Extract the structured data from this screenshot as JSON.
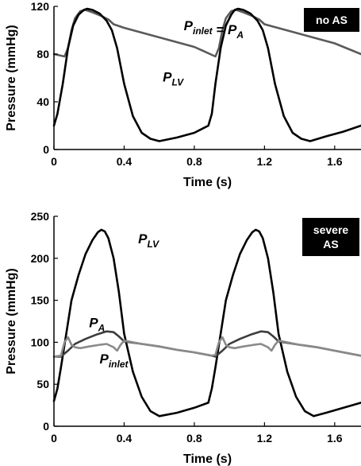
{
  "chart_data": [
    {
      "type": "line",
      "badge": [
        "no AS"
      ],
      "xlabel": "Time (s)",
      "ylabel": "Pressure (mmHg)",
      "xlim": [
        0,
        1.75
      ],
      "ylim": [
        0,
        120
      ],
      "xticks": [
        0,
        0.4,
        0.8,
        1.2,
        1.6
      ],
      "yticks": [
        0,
        40,
        80,
        120
      ],
      "grid": false,
      "annotations": [
        {
          "id": "pinlet-pa",
          "parts": [
            {
              "t": "P",
              "s": "inlet"
            },
            {
              "t": " = "
            },
            {
              "t": "P",
              "s": "A"
            }
          ],
          "x": 0.74,
          "y": 100
        },
        {
          "id": "plv",
          "parts": [
            {
              "t": "P",
              "s": "LV"
            }
          ],
          "x": 0.62,
          "y": 57
        }
      ],
      "series": [
        {
          "id": "pa",
          "color": "#5a5a5a",
          "width": 2.6,
          "x": [
            0,
            0.06,
            0.08,
            0.1,
            0.12,
            0.15,
            0.18,
            0.22,
            0.27,
            0.31,
            0.34,
            0.4,
            0.5,
            0.6,
            0.7,
            0.8,
            0.92,
            0.94,
            0.96,
            0.98,
            1.01,
            1.04,
            1.08,
            1.13,
            1.17,
            1.2,
            1.3,
            1.4,
            1.5,
            1.6,
            1.75
          ],
          "y": [
            80,
            78,
            85,
            100,
            110,
            116,
            117,
            115,
            112,
            109,
            105,
            102,
            98,
            94,
            90,
            86,
            78,
            85,
            100,
            110,
            116,
            117,
            115,
            112,
            109,
            105,
            101,
            97,
            93,
            89,
            80
          ]
        },
        {
          "id": "plv",
          "color": "#000000",
          "width": 2.6,
          "x": [
            0,
            0.02,
            0.05,
            0.08,
            0.11,
            0.14,
            0.17,
            0.19,
            0.22,
            0.26,
            0.3,
            0.33,
            0.36,
            0.4,
            0.45,
            0.5,
            0.55,
            0.6,
            0.7,
            0.8,
            0.88,
            0.9,
            0.92,
            0.95,
            0.98,
            1.01,
            1.03,
            1.05,
            1.08,
            1.12,
            1.16,
            1.19,
            1.22,
            1.26,
            1.31,
            1.36,
            1.41,
            1.46,
            1.55,
            1.65,
            1.75
          ],
          "y": [
            20,
            30,
            55,
            85,
            104,
            113,
            117,
            118,
            117,
            114,
            108,
            100,
            85,
            55,
            28,
            14,
            9,
            7,
            10,
            14,
            20,
            30,
            55,
            85,
            104,
            113,
            117,
            118,
            117,
            114,
            108,
            100,
            85,
            55,
            28,
            14,
            9,
            7,
            11,
            15,
            20
          ]
        }
      ]
    },
    {
      "type": "line",
      "badge": [
        "severe",
        "AS"
      ],
      "xlabel": "Time (s)",
      "ylabel": "Pressure (mmHg)",
      "xlim": [
        0,
        1.75
      ],
      "ylim": [
        0,
        250
      ],
      "xticks": [
        0,
        0.4,
        0.8,
        1.2,
        1.6
      ],
      "yticks": [
        0,
        50,
        100,
        150,
        200,
        250
      ],
      "grid": false,
      "annotations": [
        {
          "id": "plv",
          "parts": [
            {
              "t": "P",
              "s": "LV"
            }
          ],
          "x": 0.48,
          "y": 218
        },
        {
          "id": "pa",
          "parts": [
            {
              "t": "P",
              "s": "A"
            }
          ],
          "x": 0.2,
          "y": 118
        },
        {
          "id": "pinlet",
          "parts": [
            {
              "t": "P",
              "s": "inlet"
            }
          ],
          "x": 0.26,
          "y": 75
        }
      ],
      "series": [
        {
          "id": "plv",
          "color": "#000000",
          "width": 2.6,
          "x": [
            0,
            0.02,
            0.04,
            0.07,
            0.1,
            0.14,
            0.18,
            0.22,
            0.25,
            0.27,
            0.29,
            0.31,
            0.34,
            0.37,
            0.4,
            0.45,
            0.5,
            0.55,
            0.6,
            0.7,
            0.8,
            0.88,
            0.9,
            0.92,
            0.95,
            0.98,
            1.02,
            1.06,
            1.1,
            1.13,
            1.15,
            1.17,
            1.19,
            1.22,
            1.25,
            1.28,
            1.33,
            1.38,
            1.43,
            1.48,
            1.55,
            1.65,
            1.75
          ],
          "y": [
            30,
            45,
            70,
            110,
            150,
            180,
            205,
            222,
            231,
            234,
            232,
            224,
            200,
            160,
            110,
            65,
            35,
            18,
            12,
            16,
            22,
            28,
            45,
            70,
            110,
            150,
            180,
            205,
            222,
            231,
            234,
            232,
            224,
            200,
            160,
            110,
            65,
            35,
            18,
            12,
            16,
            22,
            28
          ]
        },
        {
          "id": "pa",
          "color": "#3c3c3c",
          "width": 2.6,
          "x": [
            0,
            0.04,
            0.08,
            0.12,
            0.18,
            0.24,
            0.3,
            0.34,
            0.37,
            0.4,
            0.5,
            0.6,
            0.7,
            0.8,
            0.9,
            0.92,
            0.96,
            1.0,
            1.06,
            1.12,
            1.18,
            1.22,
            1.25,
            1.28,
            1.4,
            1.5,
            1.6,
            1.75
          ],
          "y": [
            83,
            83,
            90,
            98,
            104,
            109,
            113,
            112,
            107,
            101,
            98,
            95,
            91,
            88,
            84,
            83,
            90,
            98,
            104,
            109,
            113,
            112,
            107,
            101,
            97,
            94,
            90,
            84
          ]
        },
        {
          "id": "pinlet",
          "color": "#8a8a8a",
          "width": 2.6,
          "x": [
            0,
            0.04,
            0.06,
            0.08,
            0.1,
            0.12,
            0.15,
            0.2,
            0.26,
            0.3,
            0.34,
            0.36,
            0.38,
            0.4,
            0.5,
            0.6,
            0.7,
            0.8,
            0.9,
            0.92,
            0.94,
            0.96,
            0.98,
            1.0,
            1.03,
            1.08,
            1.14,
            1.18,
            1.22,
            1.24,
            1.26,
            1.28,
            1.4,
            1.5,
            1.6,
            1.75
          ],
          "y": [
            83,
            84,
            100,
            106,
            97,
            94,
            93,
            95,
            97,
            98,
            94,
            90,
            97,
            102,
            98,
            95,
            91,
            88,
            84,
            85,
            100,
            106,
            97,
            94,
            93,
            95,
            97,
            98,
            94,
            90,
            97,
            102,
            97,
            94,
            90,
            84
          ]
        }
      ]
    }
  ]
}
